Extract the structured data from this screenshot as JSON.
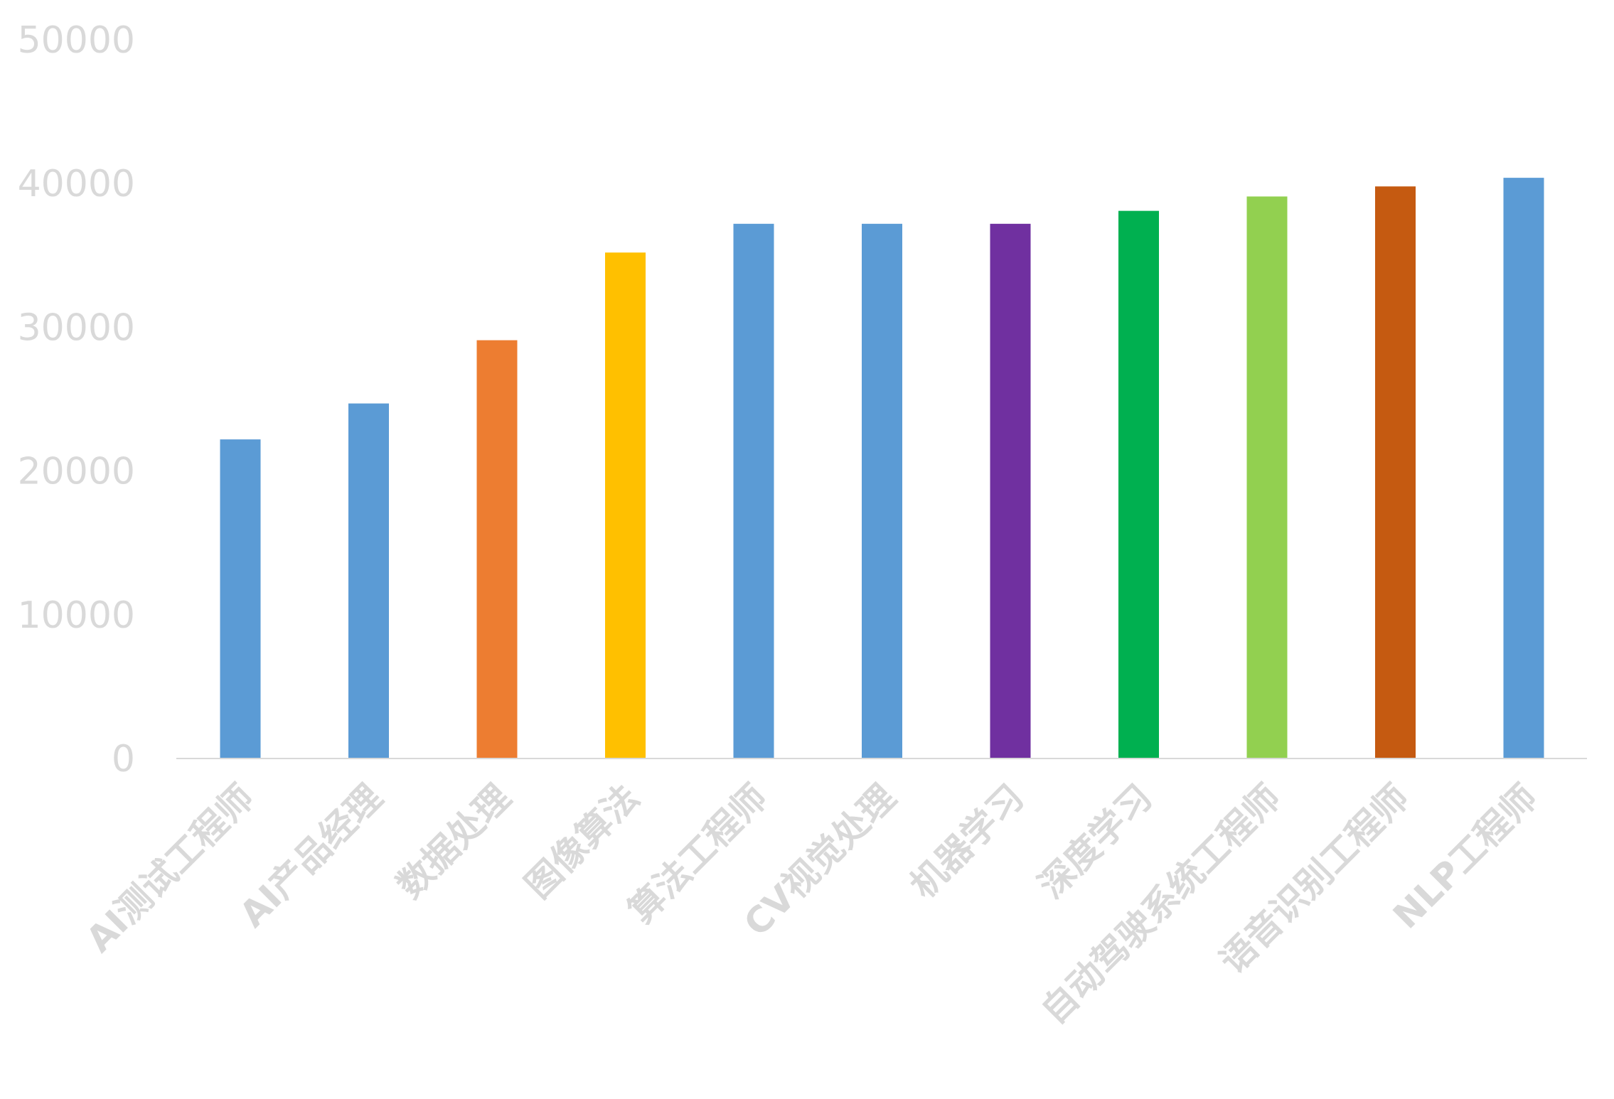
{
  "chart_data": {
    "type": "bar",
    "categories": [
      "AI测试工程师",
      "AI产品经理",
      "数据处理",
      "图像算法",
      "算法工程师",
      "CV视觉处理",
      "机器学习",
      "深度学习",
      "自动驾驶系统工程师",
      "语音识别工程师",
      "NLP工程师"
    ],
    "values": [
      22200,
      24700,
      29100,
      35200,
      37200,
      37200,
      37200,
      38100,
      39100,
      39800,
      40400
    ],
    "colors": [
      "#5b9bd5",
      "#5b9bd5",
      "#ed7d31",
      "#ffc000",
      "#5b9bd5",
      "#5b9bd5",
      "#7030a0",
      "#00b050",
      "#92d050",
      "#c55a11",
      "#5b9bd5"
    ],
    "yticks": [
      "0",
      "10000",
      "20000",
      "30000",
      "40000",
      "50000"
    ],
    "ylim": [
      0,
      50000
    ],
    "grid": false,
    "legend": "none",
    "title": "",
    "xlabel": "",
    "ylabel": ""
  }
}
